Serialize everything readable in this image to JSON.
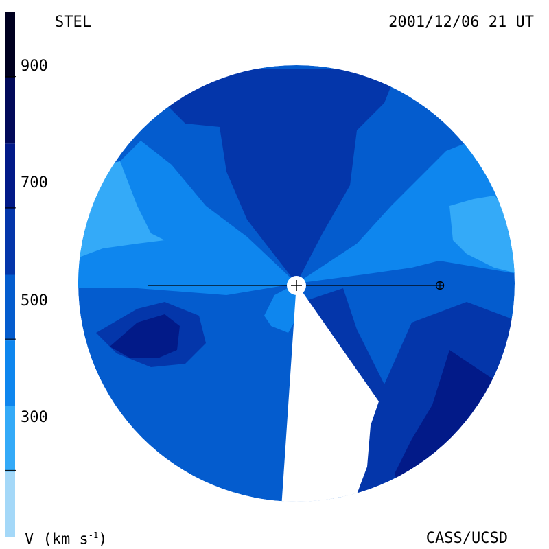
{
  "header": {
    "station": "STEL",
    "timestamp": "2001/12/06 21 UT"
  },
  "footer": {
    "credit": "CASS/UCSD"
  },
  "colorbar": {
    "title_prefix": "V (km s",
    "title_exp": "-1",
    "title_suffix": ")",
    "ticks": [
      "900",
      "700",
      "500",
      "300"
    ],
    "bands": [
      {
        "from": 200,
        "to": 300,
        "color": "#a4d8f8"
      },
      {
        "from": 300,
        "to": 400,
        "color": "#34aaf8"
      },
      {
        "from": 400,
        "to": 500,
        "color": "#0e86ee"
      },
      {
        "from": 500,
        "to": 600,
        "color": "#045cce"
      },
      {
        "from": 600,
        "to": 700,
        "color": "#0436aa"
      },
      {
        "from": 700,
        "to": 800,
        "color": "#021a88"
      },
      {
        "from": 800,
        "to": 900,
        "color": "#020a5a"
      },
      {
        "from": 900,
        "to": 1000,
        "color": "#000020"
      }
    ]
  },
  "map": {
    "background_color": "#045cce"
  }
}
